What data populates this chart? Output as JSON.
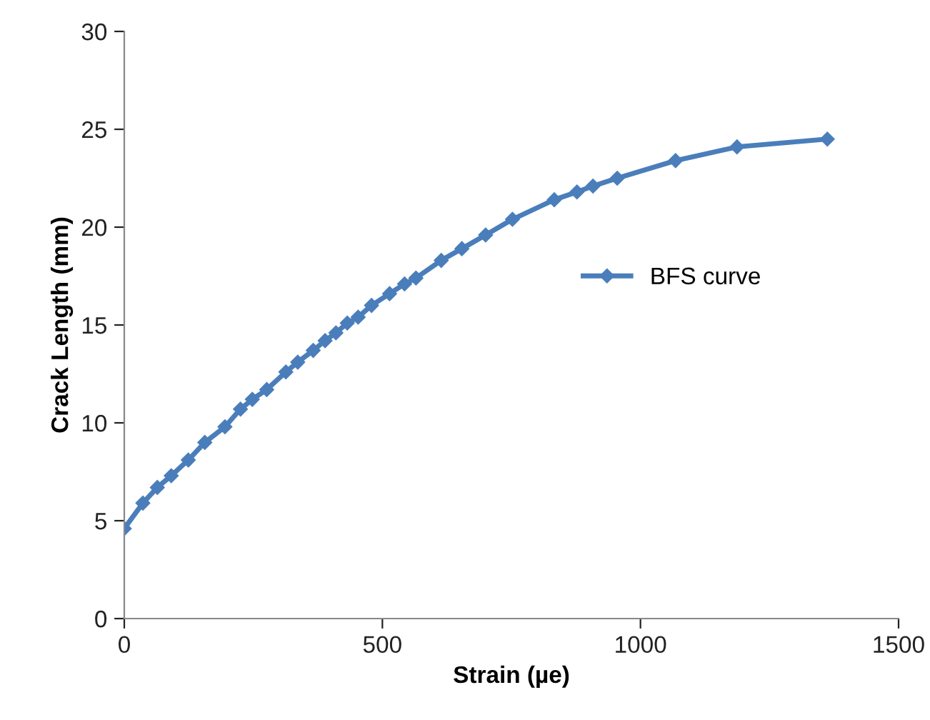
{
  "chart_data": {
    "type": "line",
    "xlabel": "Strain (µe)",
    "ylabel": "Crack Length (mm)",
    "xlim": [
      0,
      1500
    ],
    "xticks": [
      0,
      500,
      1000,
      1500
    ],
    "ylim": [
      0,
      30
    ],
    "yticks": [
      0,
      5,
      10,
      15,
      20,
      25,
      30
    ],
    "grid": false,
    "legend": "right",
    "marker": "diamond",
    "line_style": "solid",
    "series": [
      {
        "name": "BFS curve",
        "color": "#4a7ebb",
        "x": [
          0,
          36,
          64,
          91,
          124,
          156,
          195,
          225,
          248,
          276,
          313,
          336,
          366,
          389,
          410,
          432,
          453,
          479,
          514,
          543,
          565,
          614,
          654,
          700,
          752,
          833,
          877,
          908,
          955,
          1068,
          1187,
          1362
        ],
        "values": [
          4.6,
          5.9,
          6.7,
          7.3,
          8.1,
          9.0,
          9.8,
          10.7,
          11.2,
          11.7,
          12.6,
          13.1,
          13.7,
          14.2,
          14.6,
          15.1,
          15.4,
          16.0,
          16.6,
          17.1,
          17.4,
          18.3,
          18.9,
          19.6,
          20.4,
          21.4,
          21.8,
          22.1,
          22.5,
          23.4,
          24.1,
          24.5
        ]
      }
    ]
  }
}
